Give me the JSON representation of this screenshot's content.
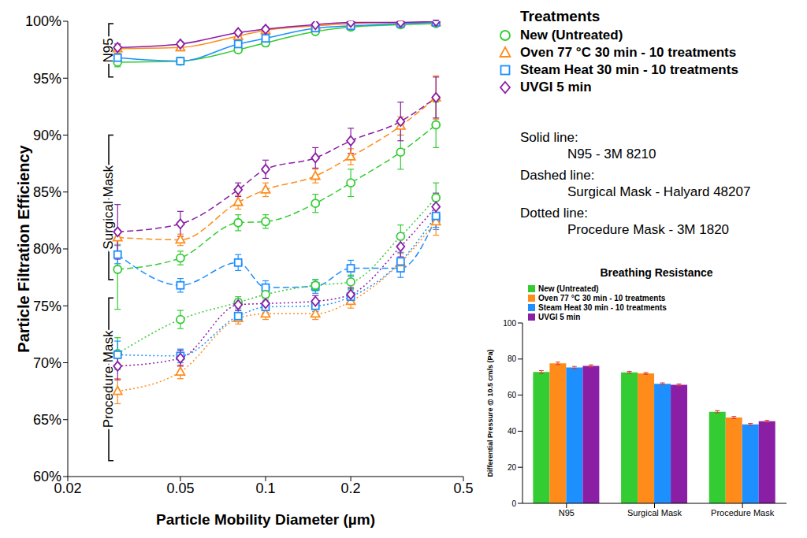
{
  "chart_data": [
    {
      "type": "line",
      "x_label": "Particle Mobility Diameter (µm)",
      "y_label": "Particle Filtration Efficiency",
      "log": "x",
      "xlim": [
        0.02,
        0.5
      ],
      "xticks": [
        0.02,
        0.05,
        0.1,
        0.2,
        0.5
      ],
      "ylim": [
        60,
        100
      ],
      "yticks": [
        {
          "value": 60,
          "label": "60%"
        },
        {
          "value": 65,
          "label": "65%"
        },
        {
          "value": 70,
          "label": "70%"
        },
        {
          "value": 75,
          "label": "75%"
        },
        {
          "value": 80,
          "label": "80%"
        },
        {
          "value": 85,
          "label": "85%"
        },
        {
          "value": 90,
          "label": "90%"
        },
        {
          "value": 95,
          "label": "95%"
        },
        {
          "value": 100,
          "label": "100%"
        }
      ],
      "legend": "right",
      "legend_title": "Treatments",
      "groups": [
        {
          "label": "Solid line:",
          "name": "N95 - 3M 8210"
        },
        {
          "label": "Dashed line:",
          "name": "Surgical Mask - Halyard 48207"
        },
        {
          "label": "Dotted line:",
          "name": "Procedure Mask - 3M 1820"
        }
      ],
      "annotations": [
        {
          "text": "N95",
          "y_range": [
            95.1,
            99.8
          ]
        },
        {
          "text": "Surgical Mask",
          "y_range": [
            77.3,
            90.0
          ]
        },
        {
          "text": "Procedure Mask",
          "y_range": [
            61.4,
            75.7
          ]
        }
      ],
      "x": [
        0.03,
        0.05,
        0.08,
        0.1,
        0.15,
        0.2,
        0.3,
        0.4
      ],
      "series": [
        {
          "name": "New (Untreated)",
          "group": "N95 - 3M 8210",
          "color": "#33cc33",
          "marker": "circle",
          "line_style": "solid",
          "values": [
            96.4,
            96.5,
            97.5,
            98.1,
            99.1,
            99.5,
            99.7,
            99.8
          ],
          "errors": [
            0.4,
            0.3,
            0.3,
            0.3,
            0.2,
            0.2,
            0.1,
            0.1
          ]
        },
        {
          "name": "Oven 77 °C 30 min - 10 treatments",
          "group": "N95 - 3M 8210",
          "color": "#ff8c1a",
          "marker": "triangle",
          "line_style": "solid",
          "values": [
            97.6,
            97.7,
            98.7,
            99.2,
            99.6,
            99.8,
            99.9,
            99.9
          ],
          "errors": [
            0.4,
            0.3,
            0.3,
            0.2,
            0.2,
            0.1,
            0.1,
            0.1
          ]
        },
        {
          "name": "Steam Heat 30 min - 10 treatments",
          "group": "N95 - 3M 8210",
          "color": "#1e8fff",
          "marker": "square",
          "line_style": "solid",
          "values": [
            96.8,
            96.5,
            98.0,
            98.5,
            99.4,
            99.6,
            99.8,
            99.9
          ],
          "errors": [
            0.6,
            0.3,
            0.3,
            0.3,
            0.2,
            0.2,
            0.1,
            0.1
          ]
        },
        {
          "name": "UVGI 5 min",
          "group": "N95 - 3M 8210",
          "color": "#8a1fa6",
          "marker": "diamond",
          "line_style": "solid",
          "values": [
            97.7,
            98.0,
            99.0,
            99.3,
            99.7,
            99.9,
            99.9,
            100.0
          ],
          "errors": [
            0.3,
            0.2,
            0.2,
            0.2,
            0.1,
            0.1,
            0.1,
            0.1
          ]
        },
        {
          "name": "New (Untreated)",
          "group": "Surgical Mask - Halyard 48207",
          "color": "#33cc33",
          "marker": "circle",
          "line_style": "dashed",
          "values": [
            78.2,
            79.2,
            82.3,
            82.4,
            84.0,
            85.8,
            88.5,
            90.9
          ],
          "errors": [
            3.5,
            0.6,
            0.7,
            0.6,
            0.8,
            1.2,
            1.5,
            2.0
          ]
        },
        {
          "name": "Oven 77 °C 30 min - 10 treatments",
          "group": "Surgical Mask - Halyard 48207",
          "color": "#ff8c1a",
          "marker": "triangle",
          "line_style": "dashed",
          "values": [
            81.0,
            80.8,
            84.1,
            85.2,
            86.4,
            88.1,
            90.8,
            93.3
          ],
          "errors": [
            0.6,
            0.5,
            0.6,
            0.6,
            0.6,
            0.7,
            0.8,
            1.9
          ]
        },
        {
          "name": "Steam Heat 30 min - 10 treatments",
          "group": "Surgical Mask - Halyard 48207",
          "color": "#1e8fff",
          "marker": "square",
          "line_style": "dashed",
          "values": [
            79.5,
            76.8,
            78.8,
            76.6,
            76.7,
            78.3,
            78.3,
            82.7
          ],
          "errors": [
            0.8,
            0.6,
            0.7,
            0.6,
            0.6,
            0.7,
            0.8,
            1.0
          ]
        },
        {
          "name": "UVGI 5 min",
          "group": "Surgical Mask - Halyard 48207",
          "color": "#8a1fa6",
          "marker": "diamond",
          "line_style": "dashed",
          "values": [
            81.5,
            82.2,
            85.2,
            87.0,
            88.0,
            89.5,
            91.2,
            93.3
          ],
          "errors": [
            2.4,
            1.1,
            0.6,
            0.8,
            0.9,
            1.1,
            1.7,
            1.8
          ]
        },
        {
          "name": "New (Untreated)",
          "group": "Procedure Mask - 3M 1820",
          "color": "#33cc33",
          "marker": "circle",
          "line_style": "dotted",
          "values": [
            70.8,
            73.8,
            75.3,
            76.0,
            76.8,
            77.1,
            81.1,
            84.5
          ],
          "errors": [
            1.4,
            0.8,
            0.5,
            0.5,
            0.5,
            0.6,
            1.0,
            1.3
          ]
        },
        {
          "name": "Oven 77 °C 30 min - 10 treatments",
          "group": "Procedure Mask - 3M 1820",
          "color": "#ff8c1a",
          "marker": "triangle",
          "line_style": "dotted",
          "values": [
            67.5,
            69.2,
            73.9,
            74.3,
            74.3,
            75.4,
            78.8,
            82.4
          ],
          "errors": [
            1.1,
            0.6,
            0.5,
            0.5,
            0.5,
            0.6,
            0.8,
            1.2
          ]
        },
        {
          "name": "Steam Heat 30 min - 10 treatments",
          "group": "Procedure Mask - 3M 1820",
          "color": "#1e8fff",
          "marker": "square",
          "line_style": "dotted",
          "values": [
            70.7,
            70.6,
            74.1,
            74.9,
            75.0,
            75.8,
            78.9,
            82.9
          ],
          "errors": [
            1.2,
            0.6,
            0.5,
            0.5,
            0.5,
            0.6,
            0.8,
            1.0
          ]
        },
        {
          "name": "UVGI 5 min",
          "group": "Procedure Mask - 3M 1820",
          "color": "#8a1fa6",
          "marker": "diamond",
          "line_style": "dotted",
          "values": [
            69.7,
            70.4,
            75.1,
            75.2,
            75.4,
            76.0,
            80.2,
            83.7
          ],
          "errors": [
            1.2,
            0.7,
            0.5,
            0.5,
            0.5,
            0.6,
            0.9,
            1.2
          ]
        }
      ]
    },
    {
      "type": "bar",
      "title": "Breathing Resistance",
      "y_label": "Differential Pressure @ 10.5 cm/s (Pa)",
      "categories": [
        "N95",
        "Surgical Mask",
        "Procedure Mask"
      ],
      "ylim": [
        0,
        100
      ],
      "yticks": [
        0,
        20,
        40,
        60,
        80,
        100
      ],
      "legend": "upper left",
      "series": [
        {
          "name": "New (Untreated)",
          "color": "#33cc33",
          "values": [
            72.8,
            72.6,
            50.8
          ],
          "errors": [
            0.8,
            0.5,
            0.6
          ]
        },
        {
          "name": "Oven 77 °C 30 min - 10 treatments",
          "color": "#ff8c1a",
          "values": [
            77.6,
            72.0,
            47.6
          ],
          "errors": [
            0.7,
            0.5,
            0.6
          ]
        },
        {
          "name": "Steam Heat 30 min - 10 treatments",
          "color": "#1e8fff",
          "values": [
            75.3,
            66.3,
            43.8
          ],
          "errors": [
            0.6,
            0.5,
            0.5
          ]
        },
        {
          "name": "UVGI 5 min",
          "color": "#8a1fa6",
          "values": [
            76.2,
            65.7,
            45.5
          ],
          "errors": [
            0.6,
            0.5,
            0.5
          ]
        }
      ]
    }
  ]
}
